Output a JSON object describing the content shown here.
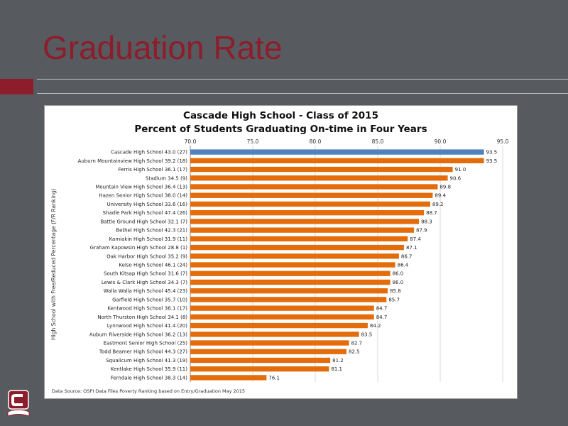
{
  "slide": {
    "title": "Graduation Rate"
  },
  "colors": {
    "background": "#575a5f",
    "accent": "#8e1d2c",
    "highlight_bar": "#4f81bd",
    "bar": "#e46c0a"
  },
  "chart_data": {
    "type": "bar",
    "orientation": "horizontal",
    "title": "Cascade High School - Class of 2015",
    "subtitle": "Percent of Students Graduating On-time in Four Years",
    "ylabel": "High School with Free/Reduced Percentage (F/R Ranking)",
    "xlim": [
      70,
      95
    ],
    "xticks": [
      "70.0",
      "75.0",
      "80.0",
      "85.0",
      "90.0",
      "95.0"
    ],
    "grid": true,
    "highlight_index": 0,
    "categories": [
      "Cascade High School 43.0 (27)",
      "Auburn Mountainview High School 39.2 (18)",
      "Ferris High School 36.1 (17)",
      "Stadium 34.5 (9)",
      "Mountain View High School 36.4 (13)",
      "Hazen Senior High School 38.0 (14)",
      "University High School 33.6 (16)",
      "Shadle Park High School 47.4 (26)",
      "Battle Ground High School 32.1 (7)",
      "Bethel High School 42.3 (21)",
      "Kamiakin High School 31.9 (11)",
      "Graham Kapowsin High School 28.8 (1)",
      "Oak Harbor High School 35.2 (9)",
      "Kelso High School 46.1 (24)",
      "South Kitsap High School 31.6 (7)",
      "Lewis & Clark High School 34.3 (7)",
      "Walla Walla High School 45.4 (23)",
      "Garfield High School 35.7 (10)",
      "Kentwood High School 36.1 (17)",
      "North Thurston High School 34.1 (8)",
      "Lynnwood High School 41.4 (20)",
      "Auburn Riverside High School 36.2 (13)",
      "Eastmont Senior High School (25)",
      "Todd Beamer High School 44.3 (27)",
      "Squalicum High School 41.3 (19)",
      "Kentlake High School 35.9 (11)",
      "Ferndale High School 38.3 (14)"
    ],
    "values": [
      93.5,
      93.5,
      91.0,
      90.6,
      89.8,
      89.4,
      89.2,
      88.7,
      88.3,
      87.9,
      87.4,
      87.1,
      86.7,
      86.4,
      86.0,
      86.0,
      85.8,
      85.7,
      84.7,
      84.7,
      84.2,
      83.5,
      82.7,
      82.5,
      81.2,
      81.1,
      76.1
    ],
    "data_labels": [
      "93.5",
      "93.5",
      "91.0",
      "90.6",
      "89.8",
      "89.4",
      "89.2",
      "88.7",
      "88.3",
      "87.9",
      "87.4",
      "87.1",
      "86.7",
      "86.4",
      "86.0",
      "86.0",
      "85.8",
      "85.7",
      "84.7",
      "84.7",
      "84.2",
      "83.5",
      "82.7",
      "82.5",
      "81.2",
      "81.1",
      "76.1"
    ],
    "source": "Data Source: OSPI Data Files Poverty Ranking based on Entry/Graduation May 2015"
  }
}
